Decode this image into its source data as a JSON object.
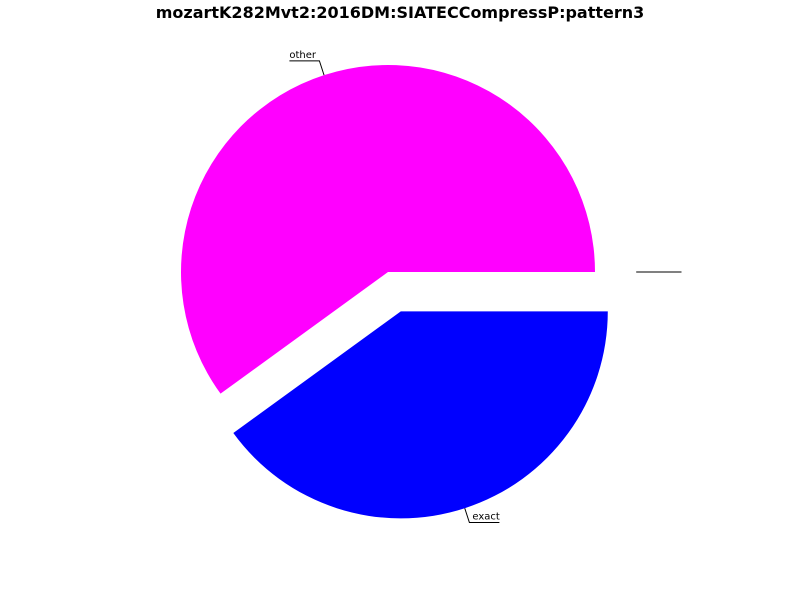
{
  "chart_data": {
    "type": "pie",
    "title": "mozartK282Mvt2:2016DM:SIATECCompressP:pattern3",
    "slices": [
      {
        "label": "exact",
        "value": 40,
        "color": "#0000ff",
        "exploded": true
      },
      {
        "label": "other",
        "value": 60,
        "color": "#ff00ff",
        "exploded": false
      },
      {
        "label": "",
        "value": 0,
        "color": "#ff0000",
        "exploded": true
      },
      {
        "label": "",
        "value": 0,
        "color": "#00ff00",
        "exploded": true
      },
      {
        "label": "",
        "value": 0,
        "color": "#ffff00",
        "exploded": true
      },
      {
        "label": "",
        "value": 0,
        "color": "#00ffff",
        "exploded": true
      }
    ],
    "legend": "none"
  }
}
